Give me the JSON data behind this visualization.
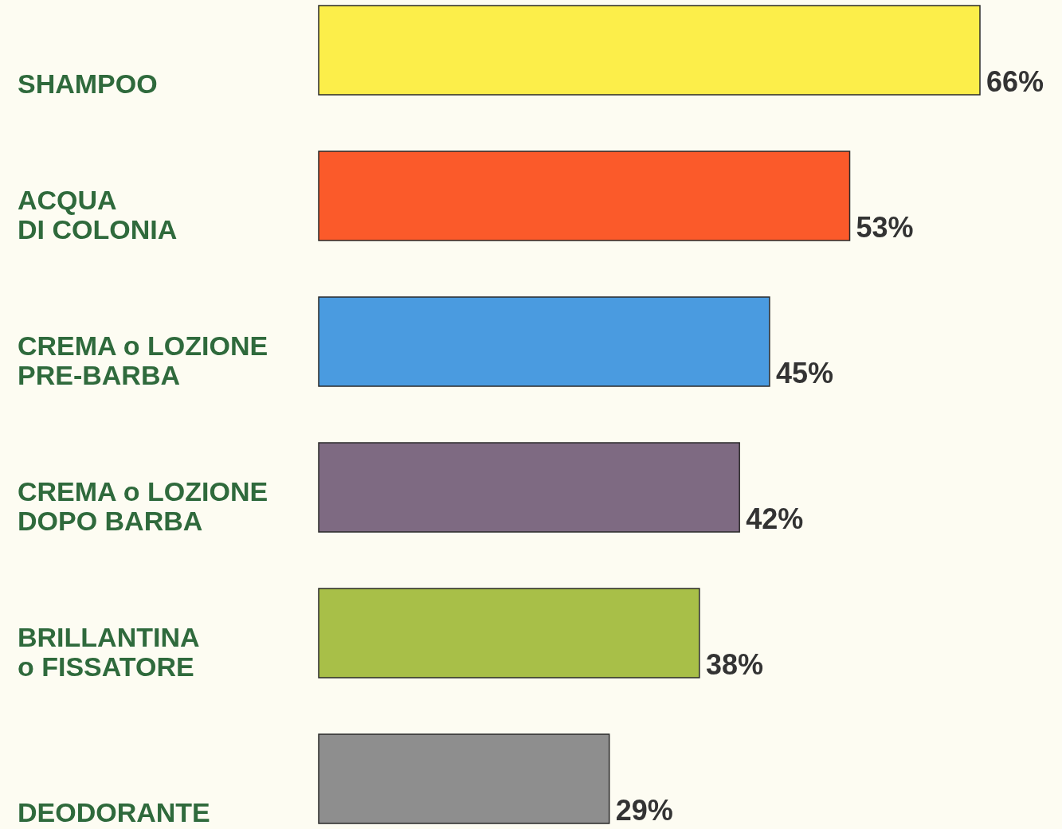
{
  "chart_data": {
    "type": "bar",
    "orientation": "horizontal",
    "categories": [
      "SHAMPOO",
      "ACQUA\nDI COLONIA",
      "CREMA o LOZIONE\nPRE-BARBA",
      "CREMA o LOZIONE\nDOPO BARBA",
      "BRILLANTINA\no FISSATORE",
      "DEODORANTE"
    ],
    "values": [
      66,
      53,
      45,
      42,
      38,
      29
    ],
    "colors": [
      "#fcee4a",
      "#fb5a2a",
      "#4a9be0",
      "#7e6a82",
      "#a8bf48",
      "#8e8e8e"
    ],
    "value_labels": [
      "66%",
      "53%",
      "45%",
      "42%",
      "38%",
      "29%"
    ]
  }
}
